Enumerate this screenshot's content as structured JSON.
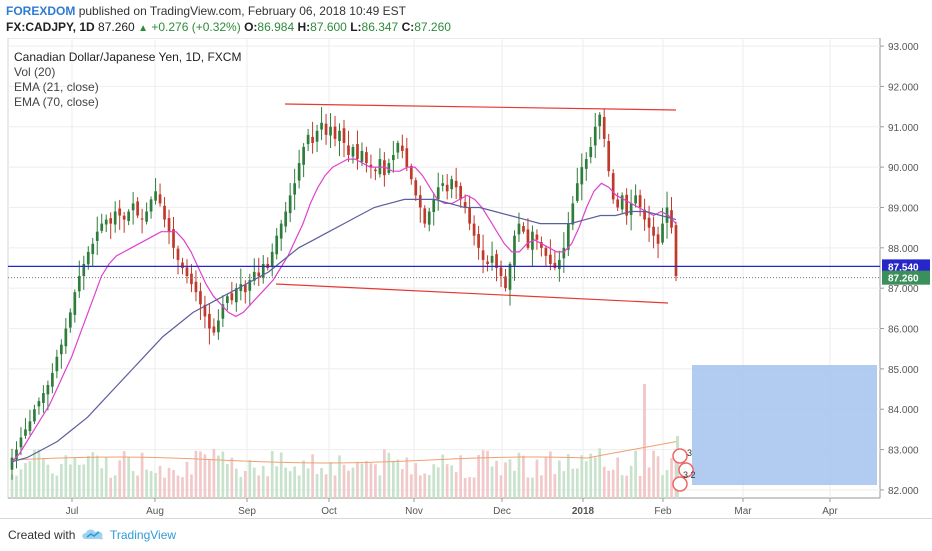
{
  "header": {
    "publisher": "FOREXDOM",
    "published_text": "published on TradingView.com, February 06, 2018 10:49 EST",
    "symbol": "FX:CADJPY, 1D",
    "last": "87.260",
    "change": "+0.276 (+0.32%)",
    "open_label": "O:",
    "open": "86.984",
    "high_label": "H:",
    "high": "87.600",
    "low_label": "L:",
    "low": "86.347",
    "close_label": "C:",
    "close": "87.260"
  },
  "legend": {
    "main": "Canadian Dollar/Japanese Yen, 1D, FXCM",
    "items": [
      "Vol (20)",
      "EMA (21, close)",
      "EMA (70, close)"
    ]
  },
  "footer": {
    "created_with": "Created with",
    "brand": "TradingView"
  },
  "colors": {
    "up": "#2f7d3c",
    "down": "#c0392b",
    "ema21": "#e040d0",
    "ema70": "#5a5f9e",
    "channel": "#e53935",
    "hline": "#2727c9",
    "box": "#a3c2ef",
    "vol_up": "#c8e2cc",
    "vol_down": "#f1c9c9",
    "vol_ma": "#f0a070"
  },
  "chart_data": {
    "type": "candlestick",
    "y_ticks": [
      "93.000",
      "92.000",
      "91.000",
      "90.000",
      "89.000",
      "88.000",
      "87.000",
      "86.000",
      "85.000",
      "84.000",
      "83.000",
      "82.000"
    ],
    "ylim": [
      81.8,
      93.2
    ],
    "x_ticks": [
      "Jul",
      "Aug",
      "Sep",
      "Oct",
      "Nov",
      "Dec",
      "2018",
      "Feb",
      "Mar",
      "Apr"
    ],
    "price_labels": [
      {
        "value": 87.54,
        "label": "87.540"
      },
      {
        "value": 87.26,
        "label": "87.260"
      }
    ],
    "close_series": [
      82.8,
      83.0,
      83.3,
      83.5,
      83.7,
      84.0,
      84.2,
      84.4,
      84.6,
      84.9,
      85.3,
      85.6,
      86.0,
      86.4,
      86.9,
      87.3,
      87.6,
      87.9,
      88.1,
      88.4,
      88.6,
      88.7,
      88.6,
      88.9,
      88.8,
      88.7,
      88.9,
      89.1,
      88.8,
      88.7,
      88.9,
      89.2,
      89.4,
      89.1,
      88.7,
      88.4,
      88.0,
      87.7,
      87.5,
      87.3,
      87.1,
      86.9,
      86.6,
      86.3,
      86.0,
      85.9,
      86.2,
      86.6,
      86.8,
      86.7,
      87.0,
      87.1,
      86.9,
      87.2,
      87.4,
      87.3,
      87.6,
      87.5,
      87.9,
      88.3,
      88.6,
      88.9,
      89.3,
      89.6,
      90.1,
      90.5,
      90.8,
      90.6,
      90.9,
      91.1,
      90.8,
      91.0,
      90.7,
      90.9,
      90.6,
      90.3,
      90.5,
      90.2,
      90.4,
      90.1,
      90.0,
      89.9,
      90.2,
      89.8,
      90.1,
      90.3,
      90.6,
      90.4,
      90.0,
      89.7,
      89.3,
      89.0,
      88.6,
      88.9,
      89.2,
      89.5,
      89.6,
      89.4,
      89.7,
      89.5,
      89.2,
      89.0,
      88.6,
      88.3,
      88.0,
      87.7,
      87.6,
      87.8,
      87.5,
      87.3,
      87.0,
      87.6,
      88.3,
      88.6,
      88.4,
      88.0,
      88.4,
      88.2,
      88.0,
      87.8,
      87.6,
      87.5,
      87.7,
      88.0,
      88.6,
      89.1,
      89.6,
      90.0,
      90.2,
      90.5,
      91.0,
      91.3,
      90.7,
      89.9,
      89.2,
      89.0,
      89.3,
      88.8,
      89.1,
      89.3,
      89.0,
      88.7,
      88.5,
      88.3,
      88.1,
      88.6,
      89.0,
      88.5,
      87.3
    ],
    "ema21_series": [
      82.7,
      82.9,
      83.2,
      83.5,
      83.8,
      84.1,
      84.5,
      84.9,
      85.3,
      85.8,
      86.3,
      86.8,
      87.3,
      87.6,
      87.8,
      87.9,
      88.0,
      88.1,
      88.2,
      88.3,
      88.4,
      88.4,
      88.4,
      88.2,
      87.9,
      87.5,
      87.1,
      86.8,
      86.6,
      86.4,
      86.3,
      86.4,
      86.6,
      86.8,
      87.0,
      87.2,
      87.5,
      87.8,
      88.2,
      88.6,
      89.1,
      89.5,
      89.8,
      90.0,
      90.1,
      90.2,
      90.2,
      90.1,
      90.0,
      90.0,
      90.0,
      89.9,
      89.9,
      90.0,
      90.0,
      89.8,
      89.5,
      89.2,
      89.1,
      89.1,
      89.2,
      89.3,
      89.2,
      89.0,
      88.7,
      88.4,
      88.1,
      87.9,
      87.9,
      88.1,
      88.2,
      88.1,
      88.0,
      87.9,
      87.9,
      88.1,
      88.5,
      89.0,
      89.4,
      89.6,
      89.5,
      89.3,
      89.2,
      89.1,
      89.0,
      88.9,
      88.8,
      88.9,
      88.8,
      88.6
    ],
    "ema70_series": [
      82.7,
      82.8,
      83.0,
      83.2,
      83.5,
      83.8,
      84.2,
      84.6,
      85.0,
      85.4,
      85.8,
      86.1,
      86.4,
      86.6,
      86.8,
      87.0,
      87.2,
      87.4,
      87.7,
      88.0,
      88.2,
      88.4,
      88.6,
      88.8,
      89.0,
      89.1,
      89.2,
      89.2,
      89.2,
      89.1,
      89.0,
      89.0,
      88.9,
      88.8,
      88.7,
      88.6,
      88.6,
      88.6,
      88.7,
      88.8,
      88.8,
      88.9,
      88.9,
      88.8,
      88.7
    ]
  }
}
